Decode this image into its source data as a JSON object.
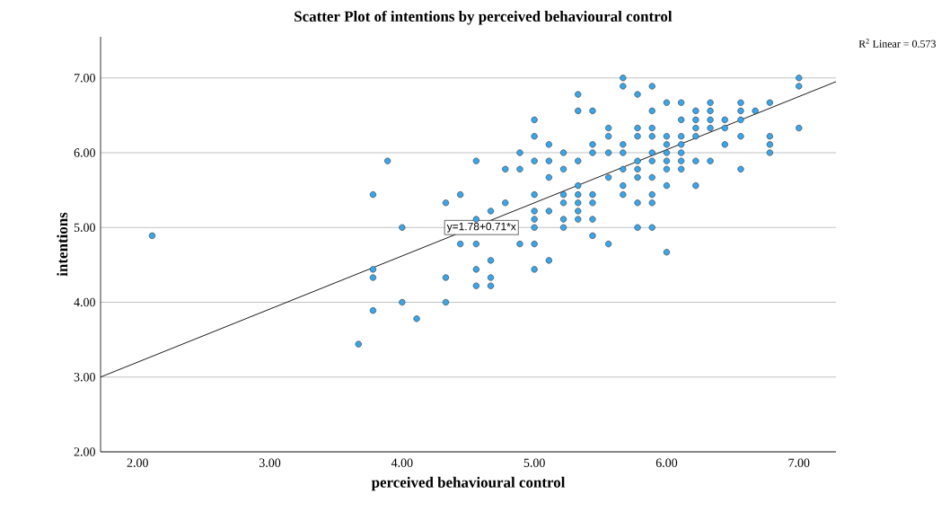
{
  "chart_data": {
    "type": "scatter",
    "title": "Scatter Plot of intentions by perceived behavioural control",
    "xlabel": "perceived behavioural control",
    "ylabel": "intentions",
    "xlim": [
      1.72,
      7.28
    ],
    "ylim": [
      2,
      7.55
    ],
    "xticks": [
      {
        "value": 2,
        "label": "2.00"
      },
      {
        "value": 3,
        "label": "3.00"
      },
      {
        "value": 4,
        "label": "4.00"
      },
      {
        "value": 5,
        "label": "5.00"
      },
      {
        "value": 6,
        "label": "6.00"
      },
      {
        "value": 7,
        "label": "7.00"
      }
    ],
    "yticks": [
      {
        "value": 2,
        "label": "2.00"
      },
      {
        "value": 3,
        "label": "3.00"
      },
      {
        "value": 4,
        "label": "4.00"
      },
      {
        "value": 5,
        "label": "5.00"
      },
      {
        "value": 6,
        "label": "6.00"
      },
      {
        "value": 7,
        "label": "7.00"
      }
    ],
    "grid": "y",
    "series": [
      {
        "marker": "circle",
        "color": "#3aa6ea",
        "x": [
          2.11,
          3.67,
          3.78,
          3.78,
          3.78,
          3.78,
          3.89,
          4.0,
          4.0,
          4.11,
          4.33,
          4.33,
          4.33,
          4.44,
          4.44,
          4.56,
          4.56,
          4.56,
          4.56,
          4.56,
          4.67,
          4.67,
          4.67,
          4.67,
          4.78,
          4.78,
          4.89,
          4.89,
          4.89,
          5.0,
          5.0,
          5.0,
          5.0,
          5.0,
          5.0,
          5.0,
          5.0,
          5.0,
          5.11,
          5.11,
          5.11,
          5.11,
          5.11,
          5.22,
          5.22,
          5.22,
          5.22,
          5.22,
          5.22,
          5.33,
          5.33,
          5.33,
          5.33,
          5.33,
          5.33,
          5.33,
          5.33,
          5.44,
          5.44,
          5.44,
          5.44,
          5.44,
          5.44,
          5.44,
          5.56,
          5.56,
          5.56,
          5.56,
          5.56,
          5.67,
          5.67,
          5.67,
          5.67,
          5.67,
          5.67,
          5.67,
          5.78,
          5.78,
          5.78,
          5.78,
          5.78,
          5.78,
          5.78,
          5.78,
          5.89,
          5.89,
          5.89,
          5.89,
          5.89,
          5.89,
          5.89,
          5.89,
          5.89,
          5.89,
          6.0,
          6.0,
          6.0,
          6.0,
          6.0,
          6.0,
          6.0,
          6.0,
          6.11,
          6.11,
          6.11,
          6.11,
          6.11,
          6.11,
          6.11,
          6.22,
          6.22,
          6.22,
          6.22,
          6.22,
          6.22,
          6.33,
          6.33,
          6.33,
          6.33,
          6.33,
          6.44,
          6.44,
          6.44,
          6.56,
          6.56,
          6.56,
          6.56,
          6.56,
          6.67,
          6.78,
          6.78,
          6.78,
          6.78,
          7.0,
          7.0,
          7.0
        ],
        "values": [
          4.89,
          3.44,
          5.44,
          4.44,
          4.33,
          3.89,
          5.89,
          5.0,
          4.0,
          3.78,
          5.33,
          4.33,
          4.0,
          5.44,
          4.78,
          5.89,
          5.11,
          4.78,
          4.44,
          4.22,
          5.22,
          4.56,
          4.33,
          4.22,
          5.78,
          5.33,
          6.0,
          5.78,
          4.78,
          6.44,
          6.22,
          5.89,
          5.44,
          5.22,
          5.11,
          5.0,
          4.78,
          4.44,
          6.11,
          5.89,
          5.67,
          5.22,
          4.56,
          6.0,
          5.78,
          5.44,
          5.33,
          5.11,
          5.0,
          6.78,
          6.56,
          5.89,
          5.56,
          5.44,
          5.33,
          5.22,
          5.11,
          6.56,
          6.11,
          6.0,
          5.44,
          5.33,
          5.11,
          4.89,
          6.33,
          6.22,
          6.0,
          5.67,
          4.78,
          7.0,
          6.89,
          6.11,
          6.0,
          5.78,
          5.56,
          5.44,
          6.78,
          6.33,
          6.22,
          5.89,
          5.78,
          5.67,
          5.33,
          5.0,
          6.89,
          6.56,
          6.33,
          6.22,
          6.0,
          5.89,
          5.67,
          5.44,
          5.33,
          5.0,
          6.67,
          6.22,
          6.11,
          6.0,
          5.89,
          5.78,
          5.56,
          4.67,
          6.67,
          6.44,
          6.22,
          6.11,
          6.0,
          5.89,
          5.78,
          6.56,
          6.44,
          6.33,
          6.22,
          5.89,
          5.56,
          6.67,
          6.56,
          6.44,
          6.33,
          5.89,
          6.44,
          6.33,
          6.11,
          6.67,
          6.56,
          6.44,
          6.22,
          5.78,
          6.56,
          6.67,
          6.22,
          6.11,
          6.0,
          7.0,
          6.89,
          6.33
        ]
      },
      {
        "type": "line",
        "marker": "none",
        "color": "#000000",
        "x": [
          1.72,
          7.28
        ],
        "values": [
          3.0,
          6.95
        ]
      }
    ],
    "annotations": [
      {
        "text": "y=1.78+0.71*x",
        "x": 4.6,
        "y": 5.0
      },
      "R$^{2}$ Linear = 0.573"
    ]
  }
}
